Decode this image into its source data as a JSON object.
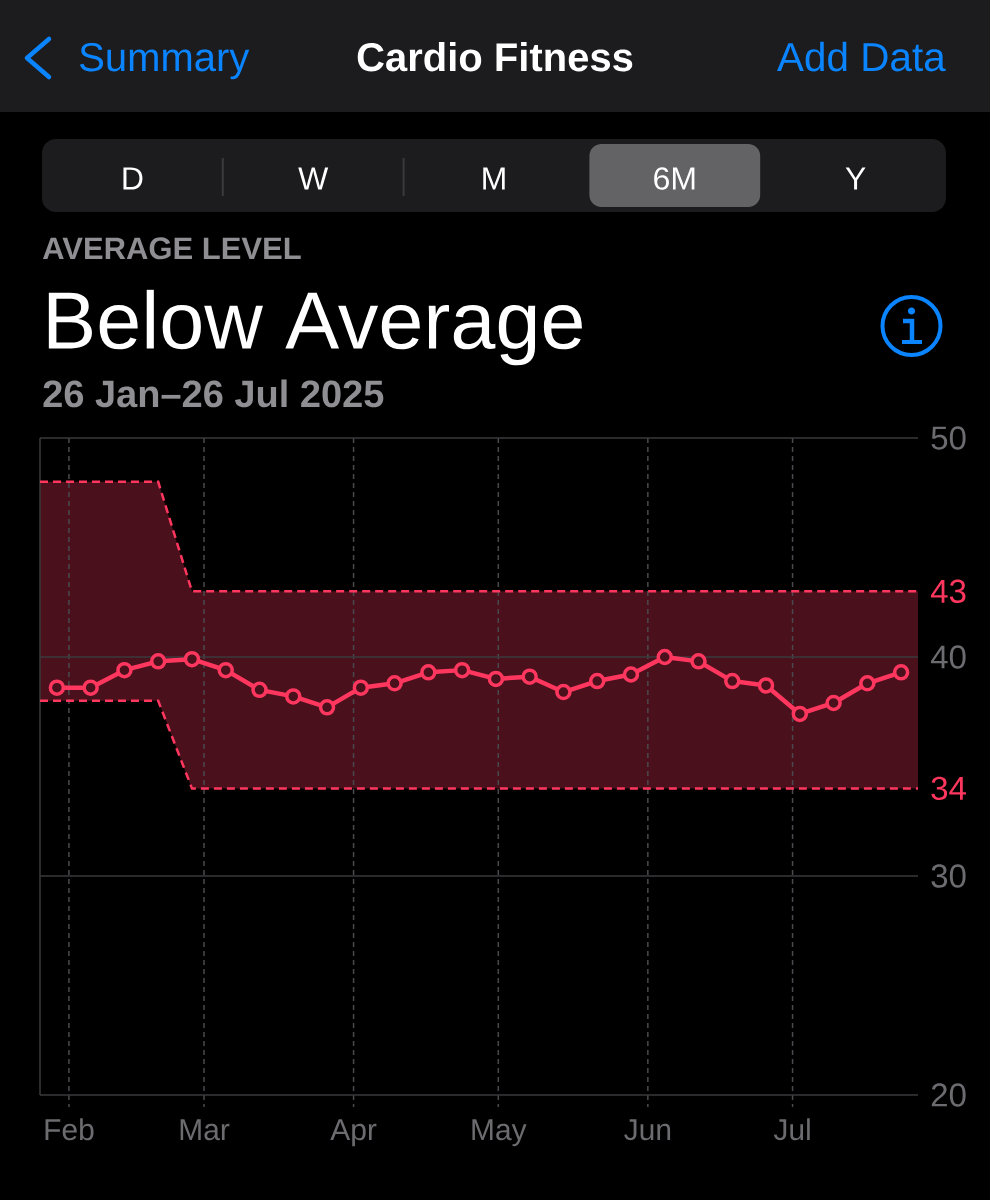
{
  "chart_data": {
    "type": "line",
    "title": "Cardio Fitness",
    "subtitle": "26 Jan–26 Jul 2025",
    "annotations": [
      "Summary",
      "Add Data",
      "D",
      "W",
      "M",
      "6M",
      "Y",
      "AVERAGE LEVEL",
      "Below Average",
      {
        "text": "43",
        "x": "2025-07-27",
        "y": 43
      },
      {
        "text": "34",
        "x": "2025-07-27",
        "y": 34
      }
    ],
    "xlim": [
      "2025-01-26",
      "2025-07-27"
    ],
    "xticks": [
      {
        "value": "2025-02-01",
        "label": "Feb"
      },
      {
        "value": "2025-03-01",
        "label": "Mar"
      },
      {
        "value": "2025-04-01",
        "label": "Apr"
      },
      {
        "value": "2025-05-01",
        "label": "May"
      },
      {
        "value": "2025-06-01",
        "label": "Jun"
      },
      {
        "value": "2025-07-01",
        "label": "Jul"
      }
    ],
    "ylim": [
      20,
      50
    ],
    "yticks": [
      20,
      30,
      40,
      50
    ],
    "grid": true,
    "marker": "circle",
    "line_style": "solid",
    "series": [
      {
        "color": "#ff375f",
        "x": [
          "2025-01-26",
          "2025-01-29T12:00",
          "2025-02-05T12:00",
          "2025-02-12T12:00",
          "2025-02-19T12:00",
          "2025-02-26T12:00",
          "2025-03-05T12:00",
          "2025-03-12T12:00",
          "2025-03-19T12:00",
          "2025-03-26T12:00",
          "2025-04-02T12:00",
          "2025-04-09T12:00",
          "2025-04-16T12:00",
          "2025-04-23T12:00",
          "2025-04-30T12:00",
          "2025-05-07T12:00",
          "2025-05-14T12:00",
          "2025-05-21T12:00",
          "2025-05-28T12:00",
          "2025-06-04T12:00",
          "2025-06-11T12:00",
          "2025-06-18T12:00",
          "2025-06-25T12:00",
          "2025-07-02T12:00",
          "2025-07-09T12:00",
          "2025-07-16T12:00",
          "2025-07-23T12:00",
          "2025-07-27"
        ],
        "values": [
          null,
          38.6,
          38.6,
          39.4,
          39.8,
          39.9,
          39.4,
          38.5,
          38.2,
          37.7,
          38.6,
          38.8,
          39.3,
          39.4,
          39.0,
          39.1,
          38.4,
          38.9,
          39.2,
          40.0,
          39.8,
          38.9,
          38.7,
          37.4,
          37.9,
          38.8,
          39.3,
          null
        ],
        "lower": [
          38,
          38,
          38,
          38,
          38,
          34,
          34,
          34,
          34,
          34,
          34,
          34,
          34,
          34,
          34,
          34,
          34,
          34,
          34,
          34,
          34,
          34,
          34,
          34,
          34,
          34,
          34,
          34
        ],
        "upper": [
          48,
          48,
          48,
          48,
          48,
          43,
          43,
          43,
          43,
          43,
          43,
          43,
          43,
          43,
          43,
          43,
          43,
          43,
          43,
          43,
          43,
          43,
          43,
          43,
          43,
          43,
          43,
          43
        ]
      }
    ]
  }
}
